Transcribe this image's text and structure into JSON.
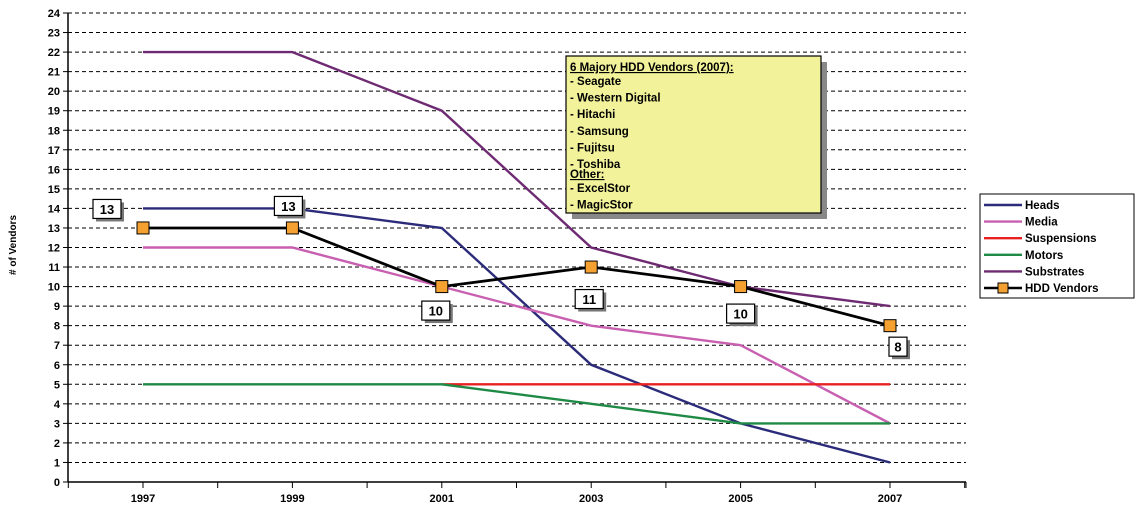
{
  "chart_data": {
    "type": "line",
    "title": "",
    "xlabel": "",
    "ylabel": "# of Vendors",
    "x": [
      "1997",
      "1999",
      "2001",
      "2003",
      "2005",
      "2007"
    ],
    "ylim": [
      0,
      24
    ],
    "yticks": [
      "0",
      "1",
      "2",
      "3",
      "4",
      "5",
      "6",
      "7",
      "8",
      "9",
      "10",
      "11",
      "12",
      "13",
      "14",
      "15",
      "16",
      "17",
      "18",
      "19",
      "20",
      "21",
      "22",
      "23",
      "24"
    ],
    "grid": true,
    "legend_position": "right",
    "series": [
      {
        "name": "Heads",
        "color": "#2b2b7a",
        "values": [
          14,
          14,
          13,
          6,
          3,
          1
        ],
        "marker": false
      },
      {
        "name": "Media",
        "color": "#c85fb0",
        "values": [
          12,
          12,
          10,
          8,
          7,
          3
        ],
        "marker": false
      },
      {
        "name": "Suspensions",
        "color": "#e82020",
        "values": [
          null,
          null,
          5,
          5,
          5,
          5
        ],
        "marker": false
      },
      {
        "name": "Motors",
        "color": "#1f8a45",
        "values": [
          5,
          5,
          5,
          4,
          3,
          3
        ],
        "marker": false
      },
      {
        "name": "Substrates",
        "color": "#6e2a72",
        "values": [
          22,
          22,
          19,
          12,
          10,
          9
        ],
        "marker": false
      },
      {
        "name": "HDD Vendors",
        "color": "#000000",
        "values": [
          13,
          13,
          10,
          11,
          10,
          8
        ],
        "marker": true,
        "marker_color": "#f5a132"
      }
    ],
    "data_labels": [
      "13",
      "13",
      "10",
      "11",
      "10",
      "8"
    ],
    "annotation": {
      "heading": "6 Majory HDD Vendors (2007):",
      "items": [
        " - Seagate",
        " - Western Digital",
        " - Hitachi",
        " - Samsung",
        " - Fujitsu",
        " - Toshiba"
      ],
      "other_heading": "Other:",
      "other_items": [
        " - ExcelStor",
        " - MagicStor"
      ]
    }
  }
}
